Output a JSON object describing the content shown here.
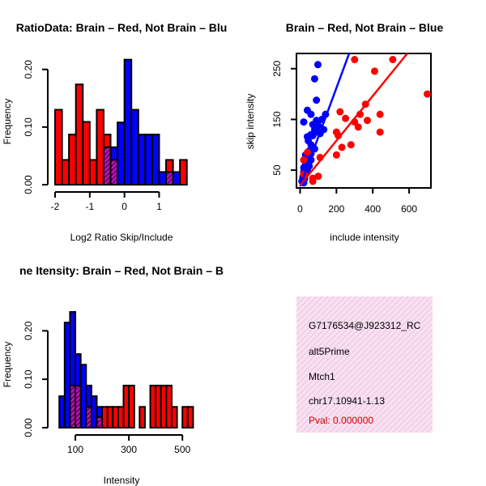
{
  "chart_data": [
    {
      "type": "bar",
      "title": "RatioData: Brain – Red, Not Brain – Blu",
      "xlabel": "Log2 Ratio Skip/Include",
      "ylabel": "Frequency",
      "xlim": [
        -2.0,
        1.9
      ],
      "ylim": [
        0,
        0.22
      ],
      "xticks": [
        -2,
        -1,
        0,
        1
      ],
      "yticks": [
        0.0,
        0.1,
        0.2
      ],
      "ytick_labels": [
        "0.00",
        "0.10",
        "0.20"
      ],
      "bin_width": 0.2,
      "series": [
        {
          "name": "Not Brain",
          "color": "#0000ff",
          "bins": [
            {
              "x0": -0.6,
              "value": 0.065
            },
            {
              "x0": -0.4,
              "value": 0.065
            },
            {
              "x0": -0.2,
              "value": 0.108
            },
            {
              "x0": 0.0,
              "value": 0.217
            },
            {
              "x0": 0.2,
              "value": 0.13
            },
            {
              "x0": 0.4,
              "value": 0.087
            },
            {
              "x0": 0.6,
              "value": 0.087
            },
            {
              "x0": 0.8,
              "value": 0.087
            },
            {
              "x0": 1.0,
              "value": 0.022
            },
            {
              "x0": 1.2,
              "value": 0.022
            },
            {
              "x0": 1.4,
              "value": 0.022
            }
          ]
        },
        {
          "name": "Brain",
          "color": "#ff0000",
          "bins": [
            {
              "x0": -2.0,
              "value": 0.13
            },
            {
              "x0": -1.8,
              "value": 0.043
            },
            {
              "x0": -1.6,
              "value": 0.087
            },
            {
              "x0": -1.4,
              "value": 0.174
            },
            {
              "x0": -1.2,
              "value": 0.109
            },
            {
              "x0": -1.0,
              "value": 0.043
            },
            {
              "x0": -0.8,
              "value": 0.13
            },
            {
              "x0": -0.6,
              "value": 0.087
            },
            {
              "x0": -0.4,
              "value": 0.043
            },
            {
              "x0": 1.2,
              "value": 0.043
            },
            {
              "x0": 1.6,
              "value": 0.043
            }
          ]
        }
      ]
    },
    {
      "type": "scatter",
      "title": "Brain – Red, Not Brain – Blue",
      "xlabel": "include intensity",
      "ylabel": "skip intensity",
      "xlim": [
        -20,
        720
      ],
      "ylim": [
        15,
        280
      ],
      "xticks": [
        0,
        200,
        400,
        600
      ],
      "yticks": [
        50,
        150,
        250
      ],
      "series": [
        {
          "name": "Not Brain",
          "color": "#0000ff",
          "points": [
            [
              98,
              258
            ],
            [
              80,
              230
            ],
            [
              90,
              188
            ],
            [
              40,
              168
            ],
            [
              60,
              160
            ],
            [
              140,
              160
            ],
            [
              120,
              150
            ],
            [
              90,
              148
            ],
            [
              20,
              145
            ],
            [
              70,
              140
            ],
            [
              100,
              138
            ],
            [
              80,
              130
            ],
            [
              130,
              130
            ],
            [
              100,
              125
            ],
            [
              110,
              122
            ],
            [
              60,
              120
            ],
            [
              70,
              118
            ],
            [
              40,
              116
            ],
            [
              45,
              108
            ],
            [
              60,
              100
            ],
            [
              80,
              92
            ],
            [
              50,
              88
            ],
            [
              60,
              82
            ],
            [
              30,
              80
            ],
            [
              40,
              76
            ],
            [
              60,
              70
            ],
            [
              45,
              66
            ],
            [
              30,
              60
            ],
            [
              50,
              58
            ],
            [
              20,
              55
            ],
            [
              30,
              52
            ],
            [
              40,
              50
            ],
            [
              20,
              46
            ],
            [
              30,
              42
            ],
            [
              20,
              40
            ],
            [
              15,
              36
            ],
            [
              25,
              33
            ],
            [
              15,
              30
            ],
            [
              10,
              28
            ],
            [
              20,
              25
            ]
          ],
          "fit": [
            [
              0,
              18
            ],
            [
              270,
              280
            ]
          ]
        },
        {
          "name": "Brain",
          "color": "#ff0000",
          "points": [
            [
              510,
              268
            ],
            [
              300,
              268
            ],
            [
              410,
              245
            ],
            [
              700,
              200
            ],
            [
              360,
              180
            ],
            [
              220,
              165
            ],
            [
              330,
              160
            ],
            [
              440,
              160
            ],
            [
              250,
              152
            ],
            [
              370,
              148
            ],
            [
              300,
              145
            ],
            [
              320,
              135
            ],
            [
              440,
              125
            ],
            [
              200,
              125
            ],
            [
              210,
              118
            ],
            [
              280,
              100
            ],
            [
              230,
              95
            ],
            [
              200,
              80
            ],
            [
              110,
              75
            ],
            [
              100,
              38
            ],
            [
              40,
              85
            ],
            [
              20,
              70
            ],
            [
              20,
              42
            ],
            [
              70,
              34
            ],
            [
              70,
              28
            ]
          ],
          "fit": [
            [
              0,
              20
            ],
            [
              590,
              280
            ]
          ]
        }
      ]
    },
    {
      "type": "bar",
      "title": "ne Itensity: Brain – Red, Not Brain – B",
      "xlabel": "Intensity",
      "ylabel": "Frequency",
      "xlim": [
        0,
        560
      ],
      "ylim": [
        0,
        0.24
      ],
      "xticks": [
        100,
        300,
        500
      ],
      "yticks": [
        0.0,
        0.1,
        0.2
      ],
      "ytick_labels": [
        "0.00",
        "0.10",
        "0.20"
      ],
      "bin_width": 20,
      "series": [
        {
          "name": "Not Brain",
          "color": "#0000ff",
          "bins": [
            {
              "x0": 40,
              "value": 0.065
            },
            {
              "x0": 60,
              "value": 0.217
            },
            {
              "x0": 80,
              "value": 0.239
            },
            {
              "x0": 100,
              "value": 0.152
            },
            {
              "x0": 120,
              "value": 0.13
            },
            {
              "x0": 140,
              "value": 0.087
            },
            {
              "x0": 160,
              "value": 0.065
            },
            {
              "x0": 180,
              "value": 0.043
            }
          ]
        },
        {
          "name": "Brain",
          "color": "#ff0000",
          "bins": [
            {
              "x0": 80,
              "value": 0.087
            },
            {
              "x0": 100,
              "value": 0.087
            },
            {
              "x0": 140,
              "value": 0.043
            },
            {
              "x0": 180,
              "value": 0.022
            },
            {
              "x0": 200,
              "value": 0.043
            },
            {
              "x0": 220,
              "value": 0.043
            },
            {
              "x0": 240,
              "value": 0.043
            },
            {
              "x0": 260,
              "value": 0.043
            },
            {
              "x0": 280,
              "value": 0.087
            },
            {
              "x0": 300,
              "value": 0.087
            },
            {
              "x0": 340,
              "value": 0.043
            },
            {
              "x0": 380,
              "value": 0.087
            },
            {
              "x0": 400,
              "value": 0.087
            },
            {
              "x0": 420,
              "value": 0.087
            },
            {
              "x0": 440,
              "value": 0.087
            },
            {
              "x0": 460,
              "value": 0.043
            },
            {
              "x0": 500,
              "value": 0.043
            },
            {
              "x0": 520,
              "value": 0.043
            }
          ]
        }
      ]
    }
  ],
  "info_panel": {
    "probe_id": "G7176534@J923312_RC",
    "event_type": "alt5Prime",
    "gene": "Mtch1",
    "location": "chr17.10941-1.13",
    "pval": "Pval: 0.000000",
    "pval_color": "#cc0000"
  }
}
